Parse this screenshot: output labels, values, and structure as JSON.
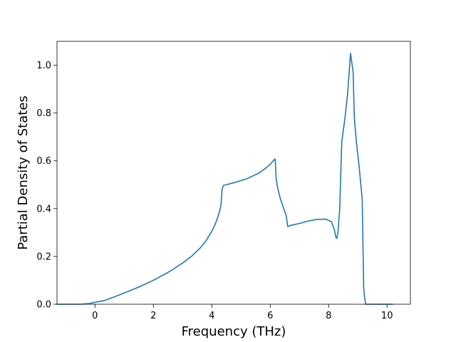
{
  "chart_data": {
    "type": "line",
    "title": "",
    "xlabel": "Frequency (THz)",
    "ylabel": "Partial Density of States",
    "xlim": [
      -1.3,
      10.8
    ],
    "ylim": [
      0.0,
      1.1
    ],
    "xticks": [
      0,
      2,
      4,
      6,
      8,
      10
    ],
    "yticks": [
      0.0,
      0.2,
      0.4,
      0.6,
      0.8,
      1.0
    ],
    "xtick_labels": [
      "0",
      "2",
      "4",
      "6",
      "8",
      "10"
    ],
    "ytick_labels": [
      "0.0",
      "0.2",
      "0.4",
      "0.6",
      "0.8",
      "1.0"
    ],
    "grid": false,
    "legend": "none",
    "series": [
      {
        "color": "#1f77b4",
        "x": [
          -1.32,
          -0.5,
          -0.2,
          0.0,
          0.3,
          0.6,
          1.0,
          1.5,
          2.0,
          2.5,
          3.0,
          3.3,
          3.6,
          3.8,
          4.0,
          4.1,
          4.2,
          4.28,
          4.32,
          4.35,
          4.4,
          4.5,
          4.8,
          5.2,
          5.6,
          5.8,
          6.0,
          6.1,
          6.17,
          6.2,
          6.25,
          6.35,
          6.45,
          6.55,
          6.6,
          6.7,
          7.0,
          7.3,
          7.6,
          7.9,
          8.1,
          8.2,
          8.25,
          8.28,
          8.32,
          8.38,
          8.45,
          8.55,
          8.65,
          8.75,
          8.84,
          8.88,
          8.95,
          9.05,
          9.15,
          9.2,
          9.23,
          9.27,
          9.35,
          10.2
        ],
        "y": [
          0.0,
          0.0,
          0.003,
          0.008,
          0.015,
          0.028,
          0.047,
          0.072,
          0.1,
          0.133,
          0.172,
          0.2,
          0.235,
          0.265,
          0.305,
          0.33,
          0.362,
          0.395,
          0.42,
          0.48,
          0.497,
          0.5,
          0.51,
          0.525,
          0.548,
          0.565,
          0.585,
          0.6,
          0.608,
          0.53,
          0.49,
          0.44,
          0.405,
          0.37,
          0.325,
          0.33,
          0.338,
          0.348,
          0.355,
          0.356,
          0.345,
          0.31,
          0.28,
          0.275,
          0.3,
          0.4,
          0.68,
          0.77,
          0.88,
          1.05,
          0.97,
          0.78,
          0.68,
          0.57,
          0.44,
          0.07,
          0.03,
          0.0,
          0.0,
          0.0
        ]
      }
    ]
  }
}
